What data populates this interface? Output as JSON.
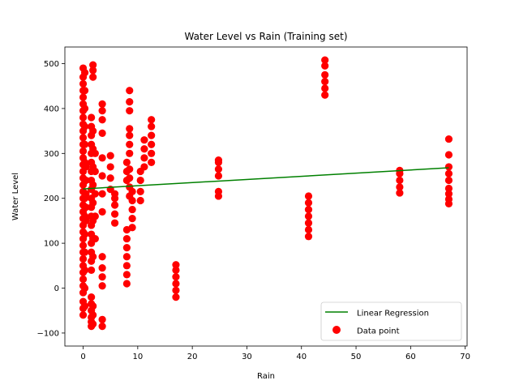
{
  "chart_data": {
    "type": "scatter",
    "title": "Water Level vs Rain (Training set)",
    "xlabel": "Rain",
    "ylabel": "Water Level",
    "xlim": [
      -3.35,
      70.35
    ],
    "ylim": [
      -129,
      537
    ],
    "xticks": [
      0,
      10,
      20,
      30,
      40,
      50,
      60,
      70
    ],
    "yticks": [
      -100,
      0,
      100,
      200,
      300,
      400,
      500
    ],
    "grid": false,
    "legend_position": "lower-right",
    "series": [
      {
        "name": "Linear Regression",
        "kind": "line",
        "color": "#008000",
        "x": [
          0,
          67
        ],
        "y": [
          221,
          268
        ]
      },
      {
        "name": "Data point",
        "kind": "scatter",
        "color": "#ff0000",
        "groups": [
          {
            "x": 0.0,
            "y": [
              -60,
              -45,
              -30,
              -10,
              5,
              20,
              35,
              50,
              65,
              80,
              95,
              110,
              125,
              140,
              155,
              170,
              185,
              200,
              215,
              230,
              245,
              260,
              275,
              290,
              305,
              320,
              335,
              350,
              365,
              380,
              395,
              410,
              425,
              440,
              455,
              470,
              490
            ]
          },
          {
            "x": 0.3,
            "y": [
              -40,
              0,
              40,
              80,
              120,
              160,
              200,
              240,
              280,
              320,
              360,
              400,
              440,
              480
            ]
          },
          {
            "x": 0.5,
            "y": [
              150,
              180,
              210,
              240,
              270
            ]
          },
          {
            "x": 1.5,
            "y": [
              -85,
              -75,
              -65,
              -50,
              -35,
              -20,
              40,
              60,
              80,
              100,
              120,
              140,
              160,
              180,
              200,
              220,
              240,
              260,
              280,
              300,
              320,
              340,
              360,
              380
            ]
          },
          {
            "x": 1.8,
            "y": [
              -80,
              -60,
              -40,
              70,
              110,
              150,
              190,
              230,
              270,
              310,
              350,
              470,
              485,
              497
            ]
          },
          {
            "x": 2.2,
            "y": [
              110,
              160,
              210,
              260,
              300
            ]
          },
          {
            "x": 3.5,
            "y": [
              -85,
              -70,
              5,
              25,
              45,
              70,
              170,
              210,
              250,
              290,
              345,
              375,
              395,
              410
            ]
          },
          {
            "x": 5.0,
            "y": [
              220,
              245,
              270,
              295
            ]
          },
          {
            "x": 5.8,
            "y": [
              145,
              165,
              185,
              200,
              210
            ]
          },
          {
            "x": 8.0,
            "y": [
              10,
              30,
              50,
              70,
              90,
              110,
              130,
              240,
              260,
              280
            ]
          },
          {
            "x": 8.5,
            "y": [
              205,
              225,
              245,
              265,
              300,
              320,
              340,
              355,
              395,
              415,
              440
            ]
          },
          {
            "x": 9.0,
            "y": [
              135,
              155,
              175,
              195,
              215
            ]
          },
          {
            "x": 10.5,
            "y": [
              195,
              215,
              240,
              260
            ]
          },
          {
            "x": 11.2,
            "y": [
              270,
              290,
              310,
              330
            ]
          },
          {
            "x": 12.5,
            "y": [
              280,
              300,
              320,
              340,
              360,
              375
            ]
          },
          {
            "x": 17.0,
            "y": [
              -20,
              -5,
              10,
              25,
              40,
              52
            ]
          },
          {
            "x": 24.8,
            "y": [
              205,
              215,
              250,
              265,
              280,
              285
            ]
          },
          {
            "x": 41.3,
            "y": [
              115,
              130,
              145,
              160,
              175,
              190,
              205
            ]
          },
          {
            "x": 44.3,
            "y": [
              430,
              445,
              460,
              475,
              495,
              508
            ]
          },
          {
            "x": 58.0,
            "y": [
              212,
              225,
              240,
              255,
              262
            ]
          },
          {
            "x": 67.0,
            "y": [
              188,
              198,
              210,
              222,
              240,
              255,
              270,
              297,
              332
            ]
          }
        ]
      }
    ]
  }
}
